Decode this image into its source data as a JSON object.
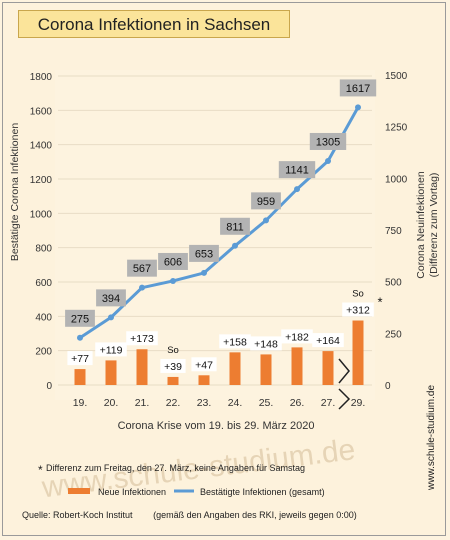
{
  "title": "Corona Infektionen in Sachsen",
  "site_url": "www.schule-studium.de",
  "watermark": "www.schule-studium.de",
  "source": "Quelle: Robert-Koch Institut",
  "source_note": "(gemäß den Angaben des RKI,  jeweils gegen 0:00)",
  "footnote_marker": "*",
  "footnote": "Differenz zum Freitag, den 27. März, keine Angaben für Samstag",
  "colors": {
    "bars": "#ed7d31",
    "line": "#5b9bd5",
    "label_box": "#b3b3b3",
    "title_fill": "#fbe49a"
  },
  "chart_data": {
    "type": "bar+line",
    "title": "Corona Infektionen in Sachsen",
    "xlabel": "Corona Krise vom 19. bis 29. März 2020",
    "ylabel_left": "Bestätigte Corona Infektionen",
    "ylabel_right": "Corona Neuinfektionen (Differenz zum Vortag)",
    "categories": [
      "19.",
      "20.",
      "21.",
      "22.",
      "23.",
      "24.",
      "25.",
      "26.",
      "27.",
      "29."
    ],
    "left_ticks": [
      0,
      200,
      400,
      600,
      800,
      1000,
      1200,
      1400,
      1600,
      1800
    ],
    "right_ticks": [
      0,
      250,
      500,
      750,
      1000,
      1250,
      1500
    ],
    "ylim_left": [
      0,
      1800
    ],
    "ylim_right": [
      0,
      1500
    ],
    "axis_break_after": "27.",
    "legend_position": "bottom",
    "series": [
      {
        "name": "Neue Infektionen",
        "type": "bar",
        "axis": "right",
        "values": [
          77,
          119,
          173,
          39,
          47,
          158,
          148,
          182,
          164,
          312
        ],
        "labels": [
          "+77",
          "+119",
          "+173",
          "+39",
          "+47",
          "+158",
          "+148",
          "+182",
          "+164",
          "+312"
        ]
      },
      {
        "name": "Bestätigte Infektionen (gesamt)",
        "type": "line",
        "axis": "left",
        "values": [
          275,
          394,
          567,
          606,
          653,
          811,
          959,
          1141,
          1305,
          1617
        ],
        "labels": [
          "275",
          "394",
          "567",
          "606",
          "653",
          "811",
          "959",
          "1141",
          "1305",
          "1617"
        ]
      }
    ],
    "annotations": [
      {
        "category": "22.",
        "text": "So"
      },
      {
        "category": "29.",
        "text": "So"
      },
      {
        "category": "29.",
        "text": "*"
      }
    ]
  }
}
